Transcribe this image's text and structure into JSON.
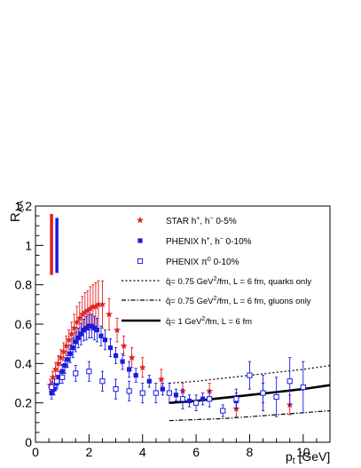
{
  "chart_data": {
    "type": "scatter",
    "title": "",
    "xlabel": "p",
    "xlabel_sub": "t",
    "xlabel_unit": " [GeV]",
    "ylabel": "R",
    "ylabel_sub": "AA",
    "xlim": [
      0,
      11
    ],
    "ylim": [
      0,
      1.2
    ],
    "x_ticks": [
      0,
      2,
      4,
      6,
      8,
      10
    ],
    "y_ticks": [
      0,
      0.2,
      0.4,
      0.6,
      0.8,
      1.0,
      1.2
    ],
    "x_tick_labels": [
      "0",
      "2",
      "4",
      "6",
      "8",
      "10"
    ],
    "y_tick_labels": [
      "0",
      "0.2",
      "0.4",
      "0.6",
      "0.8",
      "1",
      "1.2"
    ],
    "grid": false,
    "legend_position": "top-right",
    "normalization_bars": [
      {
        "name": "STAR normalization",
        "x": 0.6,
        "y_low": 0.85,
        "y_high": 1.16,
        "color": "#e02020"
      },
      {
        "name": "PHENIX normalization",
        "x": 0.8,
        "y_low": 0.86,
        "y_high": 1.14,
        "color": "#1a1ae0"
      }
    ],
    "series": [
      {
        "name": "STAR  h⁺, h⁻ 0-5%",
        "label_parts": [
          "STAR",
          "h",
          "+",
          ", h",
          "−",
          " 0-5%"
        ],
        "marker": "star",
        "color": "#e02020",
        "points": [
          {
            "x": 0.55,
            "y": 0.29,
            "err": 0.03
          },
          {
            "x": 0.65,
            "y": 0.33,
            "err": 0.03
          },
          {
            "x": 0.75,
            "y": 0.37,
            "err": 0.035
          },
          {
            "x": 0.85,
            "y": 0.4,
            "err": 0.04
          },
          {
            "x": 0.95,
            "y": 0.43,
            "err": 0.04
          },
          {
            "x": 1.05,
            "y": 0.46,
            "err": 0.045
          },
          {
            "x": 1.15,
            "y": 0.49,
            "err": 0.05
          },
          {
            "x": 1.25,
            "y": 0.52,
            "err": 0.05
          },
          {
            "x": 1.35,
            "y": 0.55,
            "err": 0.06
          },
          {
            "x": 1.45,
            "y": 0.58,
            "err": 0.07
          },
          {
            "x": 1.55,
            "y": 0.61,
            "err": 0.08
          },
          {
            "x": 1.65,
            "y": 0.63,
            "err": 0.08
          },
          {
            "x": 1.75,
            "y": 0.65,
            "err": 0.09
          },
          {
            "x": 1.85,
            "y": 0.66,
            "err": 0.1
          },
          {
            "x": 1.95,
            "y": 0.67,
            "err": 0.1
          },
          {
            "x": 2.05,
            "y": 0.68,
            "err": 0.11
          },
          {
            "x": 2.15,
            "y": 0.69,
            "err": 0.11
          },
          {
            "x": 2.25,
            "y": 0.69,
            "err": 0.12
          },
          {
            "x": 2.35,
            "y": 0.7,
            "err": 0.12
          },
          {
            "x": 2.5,
            "y": 0.7,
            "err": 0.12
          },
          {
            "x": 2.75,
            "y": 0.65,
            "err": 0.08
          },
          {
            "x": 3.05,
            "y": 0.57,
            "err": 0.06
          },
          {
            "x": 3.3,
            "y": 0.49,
            "err": 0.05
          },
          {
            "x": 3.6,
            "y": 0.43,
            "err": 0.05
          },
          {
            "x": 4.0,
            "y": 0.38,
            "err": 0.05
          },
          {
            "x": 4.7,
            "y": 0.32,
            "err": 0.05
          },
          {
            "x": 5.5,
            "y": 0.26,
            "err": 0.04
          },
          {
            "x": 6.5,
            "y": 0.26,
            "err": 0.04
          },
          {
            "x": 7.5,
            "y": 0.17,
            "err": 0.04
          },
          {
            "x": 9.5,
            "y": 0.19,
            "err": 0.05
          }
        ]
      },
      {
        "name": "PHENIX  h⁺, h⁻ 0-10%",
        "label_parts": [
          "PHENIX",
          "h",
          "+",
          ", h",
          "−",
          " 0-10%"
        ],
        "marker": "square-filled",
        "color": "#1a1ae0",
        "points": [
          {
            "x": 0.6,
            "y": 0.25,
            "err": 0.03
          },
          {
            "x": 0.7,
            "y": 0.27,
            "err": 0.03
          },
          {
            "x": 0.8,
            "y": 0.3,
            "err": 0.03
          },
          {
            "x": 0.9,
            "y": 0.33,
            "err": 0.03
          },
          {
            "x": 1.0,
            "y": 0.36,
            "err": 0.035
          },
          {
            "x": 1.1,
            "y": 0.39,
            "err": 0.04
          },
          {
            "x": 1.2,
            "y": 0.42,
            "err": 0.04
          },
          {
            "x": 1.3,
            "y": 0.45,
            "err": 0.045
          },
          {
            "x": 1.4,
            "y": 0.48,
            "err": 0.05
          },
          {
            "x": 1.5,
            "y": 0.51,
            "err": 0.05
          },
          {
            "x": 1.6,
            "y": 0.53,
            "err": 0.05
          },
          {
            "x": 1.7,
            "y": 0.55,
            "err": 0.055
          },
          {
            "x": 1.8,
            "y": 0.57,
            "err": 0.055
          },
          {
            "x": 1.9,
            "y": 0.58,
            "err": 0.06
          },
          {
            "x": 2.0,
            "y": 0.59,
            "err": 0.06
          },
          {
            "x": 2.1,
            "y": 0.59,
            "err": 0.06
          },
          {
            "x": 2.2,
            "y": 0.58,
            "err": 0.06
          },
          {
            "x": 2.3,
            "y": 0.57,
            "err": 0.06
          },
          {
            "x": 2.45,
            "y": 0.54,
            "err": 0.05
          },
          {
            "x": 2.6,
            "y": 0.52,
            "err": 0.05
          },
          {
            "x": 2.8,
            "y": 0.48,
            "err": 0.045
          },
          {
            "x": 3.0,
            "y": 0.44,
            "err": 0.04
          },
          {
            "x": 3.25,
            "y": 0.41,
            "err": 0.04
          },
          {
            "x": 3.5,
            "y": 0.37,
            "err": 0.04
          },
          {
            "x": 3.75,
            "y": 0.34,
            "err": 0.035
          },
          {
            "x": 4.25,
            "y": 0.31,
            "err": 0.03
          },
          {
            "x": 4.75,
            "y": 0.27,
            "err": 0.03
          },
          {
            "x": 5.25,
            "y": 0.24,
            "err": 0.03
          },
          {
            "x": 5.75,
            "y": 0.21,
            "err": 0.03
          },
          {
            "x": 6.25,
            "y": 0.22,
            "err": 0.03
          },
          {
            "x": 7.5,
            "y": 0.21,
            "err": 0.04
          },
          {
            "x": 8.5,
            "y": 0.25,
            "err": 0.05
          }
        ]
      },
      {
        "name": "PHENIX  π⁰ 0-10%",
        "label_parts": [
          "PHENIX",
          "π",
          "0",
          "",
          "",
          " 0-10%"
        ],
        "marker": "square-open",
        "color": "#1a1ae0",
        "points": [
          {
            "x": 0.6,
            "y": 0.28,
            "err": 0.03
          },
          {
            "x": 0.8,
            "y": 0.31,
            "err": 0.03
          },
          {
            "x": 1.0,
            "y": 0.33,
            "err": 0.03
          },
          {
            "x": 1.5,
            "y": 0.35,
            "err": 0.04
          },
          {
            "x": 2.0,
            "y": 0.36,
            "err": 0.05
          },
          {
            "x": 2.5,
            "y": 0.31,
            "err": 0.05
          },
          {
            "x": 3.0,
            "y": 0.27,
            "err": 0.05
          },
          {
            "x": 3.5,
            "y": 0.26,
            "err": 0.05
          },
          {
            "x": 4.0,
            "y": 0.25,
            "err": 0.05
          },
          {
            "x": 4.5,
            "y": 0.25,
            "err": 0.05
          },
          {
            "x": 5.0,
            "y": 0.25,
            "err": 0.05
          },
          {
            "x": 5.5,
            "y": 0.22,
            "err": 0.05
          },
          {
            "x": 6.0,
            "y": 0.2,
            "err": 0.04
          },
          {
            "x": 6.5,
            "y": 0.22,
            "err": 0.04
          },
          {
            "x": 7.0,
            "y": 0.16,
            "err": 0.03
          },
          {
            "x": 7.5,
            "y": 0.22,
            "err": 0.05
          },
          {
            "x": 8.0,
            "y": 0.34,
            "err": 0.07
          },
          {
            "x": 8.5,
            "y": 0.25,
            "err": 0.09
          },
          {
            "x": 9.0,
            "y": 0.23,
            "err": 0.1
          },
          {
            "x": 9.5,
            "y": 0.31,
            "err": 0.12
          },
          {
            "x": 10.0,
            "y": 0.28,
            "err": 0.13
          }
        ]
      }
    ],
    "curves": [
      {
        "name": "q̂= 0.75 GeV²/fm, L = 6 fm, quarks only",
        "label_parts": [
          "q̂",
          "= 0.75 GeV",
          "2",
          "/fm, L = 6 fm, quarks only"
        ],
        "style": "dotted",
        "x": [
          5.0,
          6.0,
          7.0,
          8.0,
          9.0,
          10.0,
          11.0
        ],
        "y": [
          0.3,
          0.31,
          0.325,
          0.34,
          0.355,
          0.37,
          0.39
        ]
      },
      {
        "name": "q̂= 0.75 GeV²/fm, L = 6 fm, gluons only",
        "label_parts": [
          "q̂",
          "= 0.75 GeV",
          "2",
          "/fm, L = 6 fm, gluons only"
        ],
        "style": "dash-dot",
        "x": [
          5.0,
          6.0,
          7.0,
          8.0,
          9.0,
          10.0,
          11.0
        ],
        "y": [
          0.11,
          0.115,
          0.12,
          0.13,
          0.14,
          0.15,
          0.16
        ]
      },
      {
        "name": "q̂= 1 GeV²/fm, L = 6 fm",
        "label_parts": [
          "q̂",
          "= 1 GeV",
          "2",
          "/fm, L = 6 fm"
        ],
        "style": "solid",
        "x": [
          5.0,
          6.0,
          7.0,
          8.0,
          9.0,
          10.0,
          11.0
        ],
        "y": [
          0.2,
          0.21,
          0.225,
          0.24,
          0.255,
          0.27,
          0.29
        ]
      }
    ]
  }
}
